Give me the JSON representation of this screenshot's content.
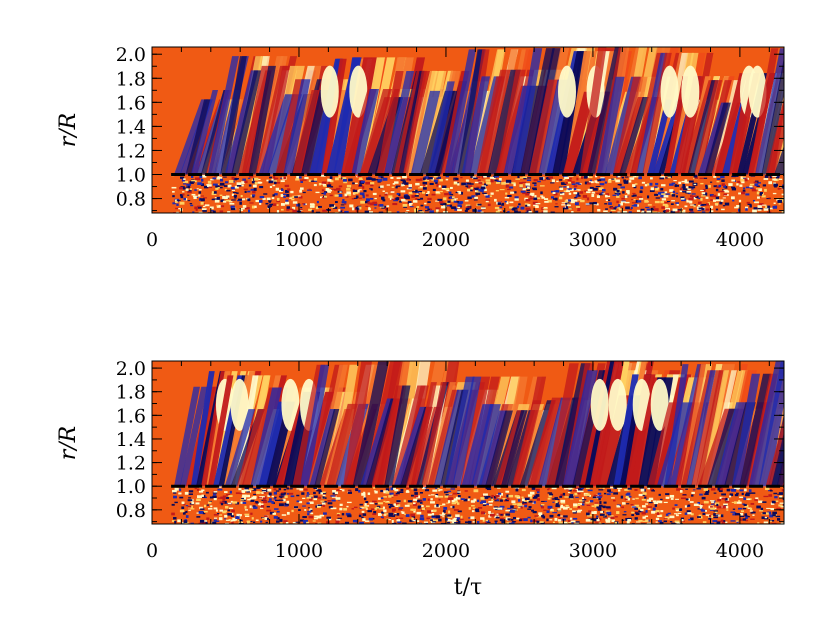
{
  "chart_data": [
    {
      "type": "heatmap",
      "panel": "top",
      "title": "",
      "xlabel": "",
      "ylabel": "r/R",
      "x_ticks": [
        "0",
        "1000",
        "2000",
        "3000",
        "4000"
      ],
      "y_ticks": [
        "0.8",
        "1.0",
        "1.2",
        "1.4",
        "1.6",
        "1.8",
        "2.0"
      ],
      "xlim": [
        0,
        4300
      ],
      "ylim": [
        0.68,
        2.06
      ],
      "surface_line": {
        "y": 1.0,
        "style": "dashed",
        "color": "#000000"
      },
      "colormap": [
        "#0a0a5a",
        "#1e2ab0",
        "#c21a1a",
        "#f04a18",
        "#f57a30",
        "#ffd060",
        "#fffac8"
      ],
      "background_color": "#f05a14",
      "onset_time": 150,
      "wave_crossing_period": 115,
      "strong_events": [
        1150,
        2700,
        3450,
        3900
      ]
    },
    {
      "type": "heatmap",
      "panel": "bottom",
      "title": "",
      "xlabel": "t/τ",
      "ylabel": "r/R",
      "x_ticks": [
        "0",
        "1000",
        "2000",
        "3000",
        "4000"
      ],
      "y_ticks": [
        "0.8",
        "1.0",
        "1.2",
        "1.4",
        "1.6",
        "1.8",
        "2.0"
      ],
      "xlim": [
        0,
        4300
      ],
      "ylim": [
        0.68,
        2.06
      ],
      "surface_line": {
        "y": 1.0,
        "style": "dashed",
        "color": "#000000"
      },
      "colormap": [
        "#0a0a5a",
        "#1e2ab0",
        "#c21a1a",
        "#f04a18",
        "#f57a30",
        "#ffd060",
        "#fffac8"
      ],
      "background_color": "#f05a14",
      "onset_time": 150,
      "wave_crossing_period": 115,
      "strong_events": [
        300,
        800,
        2950,
        3150
      ]
    }
  ]
}
